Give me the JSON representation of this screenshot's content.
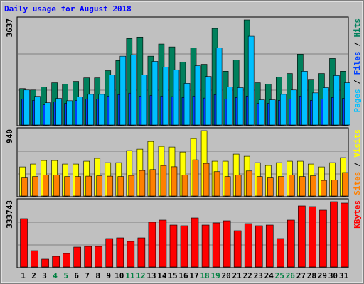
{
  "title": "Daily usage for August 2018",
  "chart_data": [
    {
      "type": "bar",
      "ylim": [
        0,
        3637
      ],
      "yticks": [
        3637
      ],
      "legend_separator": " / ",
      "series": [
        {
          "name": "Hits",
          "color": "#00805c",
          "values": [
            1260,
            1210,
            1310,
            1460,
            1410,
            1510,
            1630,
            1630,
            1880,
            2230,
            2990,
            3040,
            2380,
            2800,
            2700,
            2180,
            2670,
            2100,
            3340,
            1860,
            2250,
            3637,
            1460,
            1410,
            1660,
            1780,
            2450,
            1580,
            1780,
            2300,
            1860
          ]
        },
        {
          "name": "Files",
          "color": "#0040ff",
          "values": [
            900,
            850,
            700,
            800,
            750,
            850,
            900,
            900,
            1000,
            1050,
            1100,
            1000,
            1020,
            1000,
            980,
            950,
            1000,
            930,
            1050,
            900,
            950,
            1000,
            750,
            750,
            850,
            900,
            1000,
            850,
            900,
            950,
            920
          ]
        },
        {
          "name": "Pages",
          "color": "#00c0ff",
          "values": [
            1210,
            990,
            770,
            920,
            840,
            970,
            1060,
            1060,
            1730,
            2380,
            2430,
            1730,
            2200,
            2000,
            1910,
            1440,
            2050,
            1680,
            2670,
            1310,
            1290,
            3070,
            870,
            870,
            1060,
            1210,
            1860,
            1110,
            1290,
            1710,
            1460
          ]
        }
      ]
    },
    {
      "type": "bar",
      "ylim": [
        0,
        940
      ],
      "yticks": [
        940
      ],
      "legend_separator": " / ",
      "series": [
        {
          "name": "Visits",
          "color": "#ffff00",
          "values": [
            418,
            459,
            510,
            510,
            459,
            459,
            500,
            541,
            479,
            479,
            653,
            673,
            785,
            714,
            704,
            632,
            826,
            940,
            500,
            500,
            602,
            571,
            479,
            439,
            479,
            500,
            500,
            459,
            418,
            479,
            551
          ]
        },
        {
          "name": "Sites",
          "color": "#ff8000",
          "values": [
            270,
            280,
            300,
            300,
            280,
            280,
            285,
            290,
            285,
            280,
            296,
            367,
            380,
            438,
            420,
            300,
            520,
            469,
            350,
            280,
            300,
            360,
            280,
            270,
            280,
            300,
            280,
            290,
            224,
            230,
            337
          ]
        }
      ]
    },
    {
      "type": "bar",
      "ylim": [
        0,
        333743
      ],
      "yticks": [
        333743
      ],
      "categories": [
        "1",
        "2",
        "3",
        "4",
        "5",
        "6",
        "7",
        "8",
        "9",
        "10",
        "11",
        "12",
        "13",
        "14",
        "15",
        "16",
        "17",
        "18",
        "19",
        "20",
        "21",
        "22",
        "23",
        "24",
        "25",
        "26",
        "27",
        "28",
        "29",
        "30",
        "31"
      ],
      "category_colors": [
        "#000000",
        "#000000",
        "#000000",
        "#008040",
        "#008040",
        "#000000",
        "#000000",
        "#000000",
        "#000000",
        "#000000",
        "#008040",
        "#008040",
        "#000000",
        "#000000",
        "#000000",
        "#000000",
        "#000000",
        "#008040",
        "#008040",
        "#000000",
        "#000000",
        "#000000",
        "#000000",
        "#000000",
        "#008040",
        "#008040",
        "#000000",
        "#000000",
        "#000000",
        "#000000",
        "#000000"
      ],
      "series": [
        {
          "name": "KBytes",
          "color": "#ff0000",
          "values": [
            246700,
            83400,
            39900,
            54400,
            68900,
            101600,
            105200,
            105200,
            145100,
            148700,
            130600,
            148700,
            228600,
            239400,
            214000,
            210400,
            250300,
            214000,
            224900,
            235800,
            185000,
            221300,
            210400,
            214000,
            145100,
            239400,
            312000,
            308400,
            290200,
            333743,
            326500
          ]
        }
      ]
    }
  ]
}
